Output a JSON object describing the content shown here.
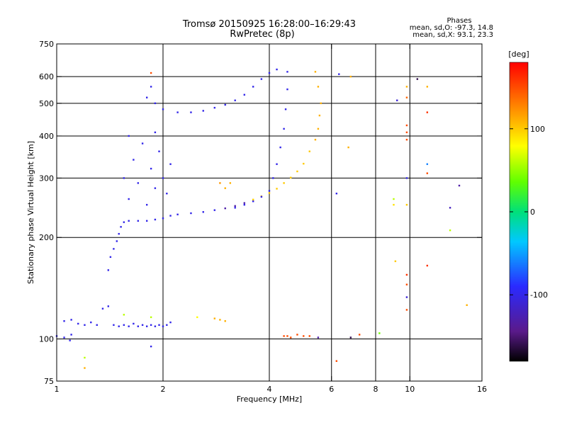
{
  "chart_data": {
    "type": "scatter",
    "title": "Tromsø 20150925 16:28:00–16:29:43",
    "subtitle": "RwPretec (8p)",
    "xlabel": "Frequency [MHz]",
    "ylabel": "Stationary phase Virtual Height [km]",
    "x_scale": "log",
    "y_scale": "log",
    "xlim": [
      1,
      16
    ],
    "ylim": [
      75,
      750
    ],
    "x_ticks": [
      1,
      2,
      4,
      6,
      8,
      10,
      16
    ],
    "x_tick_labels": [
      "1",
      "2",
      "4",
      "6",
      "8",
      "10",
      "16"
    ],
    "x_gridlines": [
      2,
      4,
      6,
      8,
      10
    ],
    "y_ticks": [
      75,
      100,
      200,
      300,
      400,
      500,
      600,
      750
    ],
    "y_tick_labels": [
      "75",
      "100",
      "200",
      "300",
      "400",
      "500",
      "600",
      "750"
    ],
    "y_gridlines": [
      100,
      200,
      300,
      400,
      500,
      600
    ],
    "phase_info": {
      "heading": "Phases",
      "line_o": "mean, sd,O: -97.3, 14.8",
      "line_x": "mean, sd,X: 93.1, 23.3"
    },
    "colorbar": {
      "label": "[deg]",
      "min": -180,
      "max": 180,
      "ticks": [
        100,
        0,
        -100
      ],
      "tick_labels": [
        "100",
        "0",
        "-100"
      ],
      "colormap": "rainbow"
    },
    "series": [
      {
        "points": [
          {
            "x": 1.0,
            "y": 102,
            "p": -100
          },
          {
            "x": 1.05,
            "y": 101,
            "p": -100
          },
          {
            "x": 1.09,
            "y": 99,
            "p": -100
          },
          {
            "x": 1.05,
            "y": 113,
            "p": -100
          },
          {
            "x": 1.1,
            "y": 114,
            "p": -100
          },
          {
            "x": 1.15,
            "y": 111,
            "p": -100
          },
          {
            "x": 1.2,
            "y": 110,
            "p": -100
          },
          {
            "x": 1.25,
            "y": 112,
            "p": -100
          },
          {
            "x": 1.3,
            "y": 110,
            "p": -100
          },
          {
            "x": 1.35,
            "y": 123,
            "p": -100
          },
          {
            "x": 1.4,
            "y": 125,
            "p": -100
          },
          {
            "x": 1.45,
            "y": 110,
            "p": -100
          },
          {
            "x": 1.5,
            "y": 109,
            "p": -100
          },
          {
            "x": 1.55,
            "y": 110,
            "p": -100
          },
          {
            "x": 1.6,
            "y": 109,
            "p": -100
          },
          {
            "x": 1.65,
            "y": 111,
            "p": -100
          },
          {
            "x": 1.7,
            "y": 109,
            "p": -100
          },
          {
            "x": 1.75,
            "y": 110,
            "p": -100
          },
          {
            "x": 1.8,
            "y": 109,
            "p": -100
          },
          {
            "x": 1.85,
            "y": 110,
            "p": -100
          },
          {
            "x": 1.9,
            "y": 109,
            "p": -100
          },
          {
            "x": 1.95,
            "y": 110,
            "p": -100
          },
          {
            "x": 2.0,
            "y": 109,
            "p": -100
          },
          {
            "x": 2.05,
            "y": 110,
            "p": -100
          },
          {
            "x": 2.1,
            "y": 112,
            "p": -100
          },
          {
            "x": 1.55,
            "y": 118,
            "p": 60
          },
          {
            "x": 1.85,
            "y": 116,
            "p": 60
          },
          {
            "x": 2.5,
            "y": 116,
            "p": 80
          },
          {
            "x": 2.8,
            "y": 115,
            "p": 110
          },
          {
            "x": 2.9,
            "y": 114,
            "p": 110
          },
          {
            "x": 3.0,
            "y": 113,
            "p": 110
          },
          {
            "x": 1.4,
            "y": 160,
            "p": -100
          },
          {
            "x": 1.42,
            "y": 175,
            "p": -100
          },
          {
            "x": 1.45,
            "y": 185,
            "p": -100
          },
          {
            "x": 1.48,
            "y": 195,
            "p": -100
          },
          {
            "x": 1.5,
            "y": 205,
            "p": -100
          },
          {
            "x": 1.52,
            "y": 215,
            "p": -100
          },
          {
            "x": 1.55,
            "y": 222,
            "p": -100
          },
          {
            "x": 1.6,
            "y": 224,
            "p": -100
          },
          {
            "x": 1.7,
            "y": 224,
            "p": -100
          },
          {
            "x": 1.8,
            "y": 224,
            "p": -100
          },
          {
            "x": 1.9,
            "y": 226,
            "p": -100
          },
          {
            "x": 2.0,
            "y": 228,
            "p": -100
          },
          {
            "x": 2.1,
            "y": 232,
            "p": -100
          },
          {
            "x": 2.2,
            "y": 234,
            "p": -100
          },
          {
            "x": 2.4,
            "y": 236,
            "p": -100
          },
          {
            "x": 2.6,
            "y": 238,
            "p": -100
          },
          {
            "x": 2.8,
            "y": 241,
            "p": -100
          },
          {
            "x": 3.0,
            "y": 244,
            "p": -130
          },
          {
            "x": 3.2,
            "y": 248,
            "p": -130
          },
          {
            "x": 3.4,
            "y": 253,
            "p": -130
          },
          {
            "x": 3.6,
            "y": 259,
            "p": 100
          },
          {
            "x": 3.8,
            "y": 265,
            "p": 100
          },
          {
            "x": 4.0,
            "y": 271,
            "p": 100
          },
          {
            "x": 4.2,
            "y": 279,
            "p": 100
          },
          {
            "x": 4.4,
            "y": 290,
            "p": 100
          },
          {
            "x": 4.6,
            "y": 301,
            "p": 100
          },
          {
            "x": 4.8,
            "y": 314,
            "p": 100
          },
          {
            "x": 5.0,
            "y": 331,
            "p": 100
          },
          {
            "x": 5.2,
            "y": 360,
            "p": 100
          },
          {
            "x": 5.4,
            "y": 390,
            "p": 110
          },
          {
            "x": 5.5,
            "y": 420,
            "p": 110
          },
          {
            "x": 5.55,
            "y": 460,
            "p": 110
          },
          {
            "x": 5.6,
            "y": 500,
            "p": 110
          },
          {
            "x": 5.5,
            "y": 560,
            "p": 110
          },
          {
            "x": 5.4,
            "y": 620,
            "p": 110
          },
          {
            "x": 3.2,
            "y": 245,
            "p": -100
          },
          {
            "x": 3.4,
            "y": 250,
            "p": -100
          },
          {
            "x": 3.6,
            "y": 256,
            "p": -100
          },
          {
            "x": 3.8,
            "y": 264,
            "p": -100
          },
          {
            "x": 4.0,
            "y": 275,
            "p": -100
          },
          {
            "x": 4.1,
            "y": 300,
            "p": -100
          },
          {
            "x": 4.2,
            "y": 330,
            "p": -100
          },
          {
            "x": 4.3,
            "y": 370,
            "p": -100
          },
          {
            "x": 4.4,
            "y": 420,
            "p": -100
          },
          {
            "x": 4.45,
            "y": 480,
            "p": -100
          },
          {
            "x": 4.5,
            "y": 550,
            "p": -100
          },
          {
            "x": 4.5,
            "y": 620,
            "p": -100
          },
          {
            "x": 2.9,
            "y": 290,
            "p": 120
          },
          {
            "x": 3.0,
            "y": 280,
            "p": 110
          },
          {
            "x": 3.1,
            "y": 290,
            "p": 110
          },
          {
            "x": 1.8,
            "y": 520,
            "p": -100
          },
          {
            "x": 1.85,
            "y": 560,
            "p": -100
          },
          {
            "x": 1.9,
            "y": 500,
            "p": -100
          },
          {
            "x": 2.0,
            "y": 480,
            "p": -100
          },
          {
            "x": 2.2,
            "y": 470,
            "p": -100
          },
          {
            "x": 2.4,
            "y": 470,
            "p": -100
          },
          {
            "x": 2.6,
            "y": 475,
            "p": -100
          },
          {
            "x": 2.8,
            "y": 485,
            "p": -100
          },
          {
            "x": 3.0,
            "y": 495,
            "p": -100
          },
          {
            "x": 3.2,
            "y": 510,
            "p": -100
          },
          {
            "x": 3.4,
            "y": 530,
            "p": -100
          },
          {
            "x": 3.6,
            "y": 560,
            "p": -100
          },
          {
            "x": 3.8,
            "y": 590,
            "p": -100
          },
          {
            "x": 4.0,
            "y": 615,
            "p": -100
          },
          {
            "x": 4.2,
            "y": 630,
            "p": -100
          },
          {
            "x": 1.55,
            "y": 300,
            "p": -100
          },
          {
            "x": 1.6,
            "y": 260,
            "p": -100
          },
          {
            "x": 1.65,
            "y": 340,
            "p": -100
          },
          {
            "x": 1.7,
            "y": 290,
            "p": -100
          },
          {
            "x": 1.75,
            "y": 380,
            "p": -100
          },
          {
            "x": 1.8,
            "y": 250,
            "p": -100
          },
          {
            "x": 1.85,
            "y": 320,
            "p": -100
          },
          {
            "x": 1.9,
            "y": 280,
            "p": -100
          },
          {
            "x": 1.95,
            "y": 360,
            "p": -100
          },
          {
            "x": 2.0,
            "y": 300,
            "p": -100
          },
          {
            "x": 2.05,
            "y": 270,
            "p": -100
          },
          {
            "x": 2.1,
            "y": 330,
            "p": -100
          },
          {
            "x": 1.6,
            "y": 400,
            "p": -100
          },
          {
            "x": 1.9,
            "y": 410,
            "p": -100
          },
          {
            "x": 4.4,
            "y": 102,
            "p": 150
          },
          {
            "x": 4.5,
            "y": 102,
            "p": 150
          },
          {
            "x": 4.6,
            "y": 101,
            "p": 150
          },
          {
            "x": 4.8,
            "y": 103,
            "p": 150
          },
          {
            "x": 5.0,
            "y": 102,
            "p": 150
          },
          {
            "x": 5.2,
            "y": 102,
            "p": 150
          },
          {
            "x": 5.5,
            "y": 101,
            "p": -130
          },
          {
            "x": 6.2,
            "y": 86,
            "p": 150
          },
          {
            "x": 6.8,
            "y": 101,
            "p": -160
          },
          {
            "x": 7.2,
            "y": 103,
            "p": 150
          },
          {
            "x": 6.2,
            "y": 270,
            "p": -100
          },
          {
            "x": 6.7,
            "y": 370,
            "p": 110
          },
          {
            "x": 6.3,
            "y": 610,
            "p": -100
          },
          {
            "x": 6.8,
            "y": 600,
            "p": 110
          },
          {
            "x": 9.8,
            "y": 430,
            "p": 150
          },
          {
            "x": 9.8,
            "y": 410,
            "p": 150
          },
          {
            "x": 9.8,
            "y": 390,
            "p": 150
          },
          {
            "x": 9.8,
            "y": 560,
            "p": 110
          },
          {
            "x": 9.8,
            "y": 520,
            "p": 140
          },
          {
            "x": 9.8,
            "y": 300,
            "p": -100
          },
          {
            "x": 9.8,
            "y": 250,
            "p": 100
          },
          {
            "x": 9.2,
            "y": 510,
            "p": -110
          },
          {
            "x": 9.1,
            "y": 170,
            "p": 100
          },
          {
            "x": 9.8,
            "y": 155,
            "p": 160
          },
          {
            "x": 9.8,
            "y": 145,
            "p": 150
          },
          {
            "x": 9.8,
            "y": 133,
            "p": -110
          },
          {
            "x": 9.8,
            "y": 122,
            "p": 150
          },
          {
            "x": 11.2,
            "y": 560,
            "p": 110
          },
          {
            "x": 11.2,
            "y": 470,
            "p": 160
          },
          {
            "x": 11.2,
            "y": 330,
            "p": -60
          },
          {
            "x": 11.2,
            "y": 310,
            "p": 150
          },
          {
            "x": 11.2,
            "y": 165,
            "p": 160
          },
          {
            "x": 10.5,
            "y": 590,
            "p": -160
          },
          {
            "x": 13.0,
            "y": 245,
            "p": -120
          },
          {
            "x": 13.0,
            "y": 210,
            "p": 60
          },
          {
            "x": 13.8,
            "y": 285,
            "p": -130
          },
          {
            "x": 14.5,
            "y": 126,
            "p": 110
          },
          {
            "x": 9.0,
            "y": 250,
            "p": 90
          },
          {
            "x": 9.0,
            "y": 260,
            "p": 60
          },
          {
            "x": 8.2,
            "y": 104,
            "p": 40
          },
          {
            "x": 1.2,
            "y": 82,
            "p": 110
          },
          {
            "x": 1.2,
            "y": 88,
            "p": 60
          },
          {
            "x": 1.1,
            "y": 103,
            "p": -100
          },
          {
            "x": 1.85,
            "y": 95,
            "p": -100
          },
          {
            "x": 1.85,
            "y": 615,
            "p": 150
          }
        ]
      }
    ]
  }
}
